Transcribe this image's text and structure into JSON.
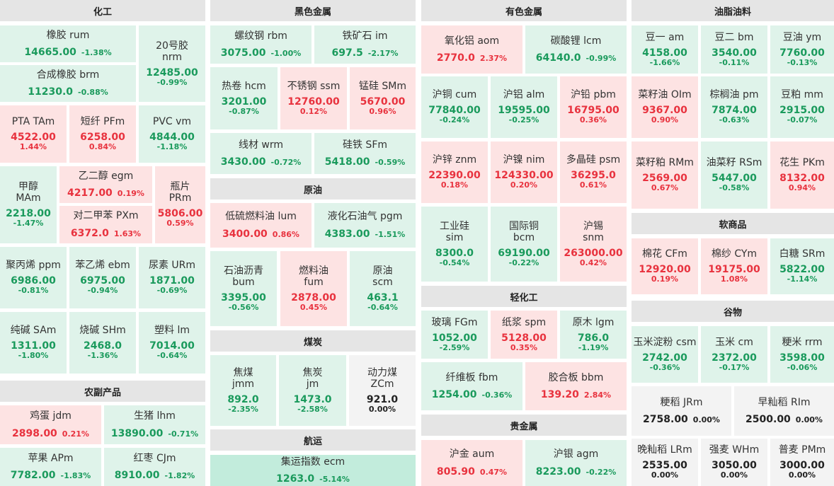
{
  "sections": [
    {
      "title": "化工"
    },
    {
      "title": "黑色金属"
    },
    {
      "title": "有色金属"
    },
    {
      "title": "油脂油料"
    },
    {
      "title": "原油"
    },
    {
      "title": "煤炭"
    },
    {
      "title": "航运"
    },
    {
      "title": "轻化工"
    },
    {
      "title": "贵金属"
    },
    {
      "title": "软商品"
    },
    {
      "title": "谷物"
    },
    {
      "title": "农副产品"
    }
  ],
  "tiles": [
    {
      "name": "橡胶  rum",
      "price": "14665.00",
      "change": "-1.38%",
      "trend": "down"
    },
    {
      "name": "20号胶",
      "code": "nrm",
      "price": "12485.00",
      "change": "-0.99%",
      "trend": "down"
    },
    {
      "name": "合成橡胶  brm",
      "price": "11230.0",
      "change": "-0.88%",
      "trend": "down"
    },
    {
      "name": "PTA  TAm",
      "price": "4522.00",
      "change": "1.44%",
      "trend": "up"
    },
    {
      "name": "短纤  PFm",
      "price": "6258.00",
      "change": "0.84%",
      "trend": "up"
    },
    {
      "name": "PVC  vm",
      "price": "4844.00",
      "change": "-1.18%",
      "trend": "down"
    },
    {
      "name": "甲醇",
      "code": "MAm",
      "price": "2218.00",
      "change": "-1.47%",
      "trend": "down"
    },
    {
      "name": "乙二醇  egm",
      "price": "4217.00",
      "change": "0.19%",
      "trend": "up"
    },
    {
      "name": "对二甲苯  PXm",
      "price": "6372.0",
      "change": "1.63%",
      "trend": "up"
    },
    {
      "name": "瓶片",
      "code": "PRm",
      "price": "5806.00",
      "change": "0.59%",
      "trend": "up"
    },
    {
      "name": "聚丙烯  ppm",
      "price": "6986.00",
      "change": "-0.81%",
      "trend": "down"
    },
    {
      "name": "苯乙烯  ebm",
      "price": "6975.00",
      "change": "-0.94%",
      "trend": "down"
    },
    {
      "name": "尿素  URm",
      "price": "1871.00",
      "change": "-0.69%",
      "trend": "down"
    },
    {
      "name": "纯碱  SAm",
      "price": "1311.00",
      "change": "-1.80%",
      "trend": "down"
    },
    {
      "name": "烧碱  SHm",
      "price": "2468.0",
      "change": "-1.36%",
      "trend": "down"
    },
    {
      "name": "塑料  lm",
      "price": "7014.00",
      "change": "-0.64%",
      "trend": "down"
    },
    {
      "name": "鸡蛋  jdm",
      "price": "2898.00",
      "change": "0.21%",
      "trend": "up"
    },
    {
      "name": "生猪  lhm",
      "price": "13890.00",
      "change": "-0.71%",
      "trend": "down"
    },
    {
      "name": "苹果  APm",
      "price": "7782.00",
      "change": "-1.83%",
      "trend": "down"
    },
    {
      "name": "红枣  CJm",
      "price": "8910.00",
      "change": "-1.82%",
      "trend": "down"
    },
    {
      "name": "螺纹钢  rbm",
      "price": "3075.00",
      "change": "-1.00%",
      "trend": "down"
    },
    {
      "name": "铁矿石  im",
      "price": "697.5",
      "change": "-2.17%",
      "trend": "down"
    },
    {
      "name": "热卷  hcm",
      "price": "3201.00",
      "change": "-0.87%",
      "trend": "down"
    },
    {
      "name": "不锈钢  ssm",
      "price": "12760.00",
      "change": "0.12%",
      "trend": "up"
    },
    {
      "name": "锰硅  SMm",
      "price": "5670.00",
      "change": "0.96%",
      "trend": "up"
    },
    {
      "name": "线材  wrm",
      "price": "3430.00",
      "change": "-0.72%",
      "trend": "down"
    },
    {
      "name": "硅铁  SFm",
      "price": "5418.00",
      "change": "-0.59%",
      "trend": "down"
    },
    {
      "name": "低硫燃料油  lum",
      "price": "3400.00",
      "change": "0.86%",
      "trend": "up"
    },
    {
      "name": "液化石油气  pgm",
      "price": "4383.00",
      "change": "-1.51%",
      "trend": "down"
    },
    {
      "name": "石油沥青",
      "code": "bum",
      "price": "3395.00",
      "change": "-0.56%",
      "trend": "down"
    },
    {
      "name": "燃料油",
      "code": "fum",
      "price": "2878.00",
      "change": "0.45%",
      "trend": "up"
    },
    {
      "name": "原油",
      "code": "scm",
      "price": "463.1",
      "change": "-0.64%",
      "trend": "down"
    },
    {
      "name": "焦煤",
      "code": "jmm",
      "price": "892.0",
      "change": "-2.35%",
      "trend": "down"
    },
    {
      "name": "焦炭",
      "code": "jm",
      "price": "1473.0",
      "change": "-2.58%",
      "trend": "down"
    },
    {
      "name": "动力煤",
      "code": "ZCm",
      "price": "921.0",
      "change": "0.00%",
      "trend": "flat"
    },
    {
      "name": "集运指数  ecm",
      "price": "1263.0",
      "change": "-5.14%",
      "trend": "strong"
    },
    {
      "name": "氧化铝  aom",
      "price": "2770.0",
      "change": "2.37%",
      "trend": "up"
    },
    {
      "name": "碳酸锂  lcm",
      "price": "64140.0",
      "change": "-0.99%",
      "trend": "down"
    },
    {
      "name": "沪铜  cum",
      "price": "77840.00",
      "change": "-0.24%",
      "trend": "down"
    },
    {
      "name": "沪铝  alm",
      "price": "19595.00",
      "change": "-0.25%",
      "trend": "down"
    },
    {
      "name": "沪铅  pbm",
      "price": "16795.00",
      "change": "0.36%",
      "trend": "up"
    },
    {
      "name": "沪锌  znm",
      "price": "22390.00",
      "change": "0.18%",
      "trend": "up"
    },
    {
      "name": "沪镍  nim",
      "price": "124330.00",
      "change": "0.20%",
      "trend": "up"
    },
    {
      "name": "多晶硅  psm",
      "price": "36295.0",
      "change": "0.61%",
      "trend": "up"
    },
    {
      "name": "工业硅",
      "code": "sim",
      "price": "8300.0",
      "change": "-0.54%",
      "trend": "down"
    },
    {
      "name": "国际铜",
      "code": "bcm",
      "price": "69190.00",
      "change": "-0.22%",
      "trend": "down"
    },
    {
      "name": "沪锡",
      "code": "snm",
      "price": "263000.00",
      "change": "0.42%",
      "trend": "up"
    },
    {
      "name": "玻璃  FGm",
      "price": "1052.00",
      "change": "-2.59%",
      "trend": "down"
    },
    {
      "name": "纸浆  spm",
      "price": "5128.00",
      "change": "0.35%",
      "trend": "up"
    },
    {
      "name": "原木  lgm",
      "price": "786.0",
      "change": "-1.19%",
      "trend": "down"
    },
    {
      "name": "纤维板  fbm",
      "price": "1254.00",
      "change": "-0.36%",
      "trend": "down"
    },
    {
      "name": "胶合板  bbm",
      "price": "139.20",
      "change": "2.84%",
      "trend": "up"
    },
    {
      "name": "沪金  aum",
      "price": "805.90",
      "change": "0.47%",
      "trend": "up"
    },
    {
      "name": "沪银  agm",
      "price": "8223.00",
      "change": "-0.22%",
      "trend": "down"
    },
    {
      "name": "豆一  am",
      "price": "4158.00",
      "change": "-1.66%",
      "trend": "down"
    },
    {
      "name": "豆二  bm",
      "price": "3540.00",
      "change": "-0.11%",
      "trend": "down"
    },
    {
      "name": "豆油  ym",
      "price": "7760.00",
      "change": "-0.13%",
      "trend": "down"
    },
    {
      "name": "菜籽油  OIm",
      "price": "9367.00",
      "change": "0.90%",
      "trend": "up"
    },
    {
      "name": "棕榈油  pm",
      "price": "7874.00",
      "change": "-0.63%",
      "trend": "down"
    },
    {
      "name": "豆粕  mm",
      "price": "2915.00",
      "change": "-0.07%",
      "trend": "down"
    },
    {
      "name": "菜籽粕  RMm",
      "price": "2569.00",
      "change": "0.67%",
      "trend": "up"
    },
    {
      "name": "油菜籽  RSm",
      "price": "5447.00",
      "change": "-0.58%",
      "trend": "down"
    },
    {
      "name": "花生  PKm",
      "price": "8132.00",
      "change": "0.94%",
      "trend": "up"
    },
    {
      "name": "棉花  CFm",
      "price": "12920.00",
      "change": "0.19%",
      "trend": "up"
    },
    {
      "name": "棉纱  CYm",
      "price": "19175.00",
      "change": "1.08%",
      "trend": "up"
    },
    {
      "name": "白糖  SRm",
      "price": "5822.00",
      "change": "-1.14%",
      "trend": "down"
    },
    {
      "name": "玉米淀粉  csm",
      "price": "2742.00",
      "change": "-0.36%",
      "trend": "down"
    },
    {
      "name": "玉米  cm",
      "price": "2372.00",
      "change": "-0.17%",
      "trend": "down"
    },
    {
      "name": "粳米  rrm",
      "price": "3598.00",
      "change": "-0.06%",
      "trend": "down"
    },
    {
      "name": "粳稻  JRm",
      "price": "2758.00",
      "change": "0.00%",
      "trend": "flat"
    },
    {
      "name": "早籼稻  RIm",
      "price": "2500.00",
      "change": "0.00%",
      "trend": "flat"
    },
    {
      "name": "晚籼稻  LRm",
      "price": "2535.00",
      "change": "0.00%",
      "trend": "flat"
    },
    {
      "name": "强麦  WHm",
      "price": "3050.00",
      "change": "0.00%",
      "trend": "flat"
    },
    {
      "name": "普麦  PMm",
      "price": "3000.00",
      "change": "0.00%",
      "trend": "flat"
    }
  ],
  "colors": {
    "up_bg": "#fde3e3",
    "up_text": "#e8323e",
    "down_bg": "#dff3ea",
    "down_text": "#1a9a5c",
    "flat_bg": "#f3f3f3",
    "strong_down_bg": "#c2ecdc",
    "header_bg": "#e5e5e5"
  }
}
